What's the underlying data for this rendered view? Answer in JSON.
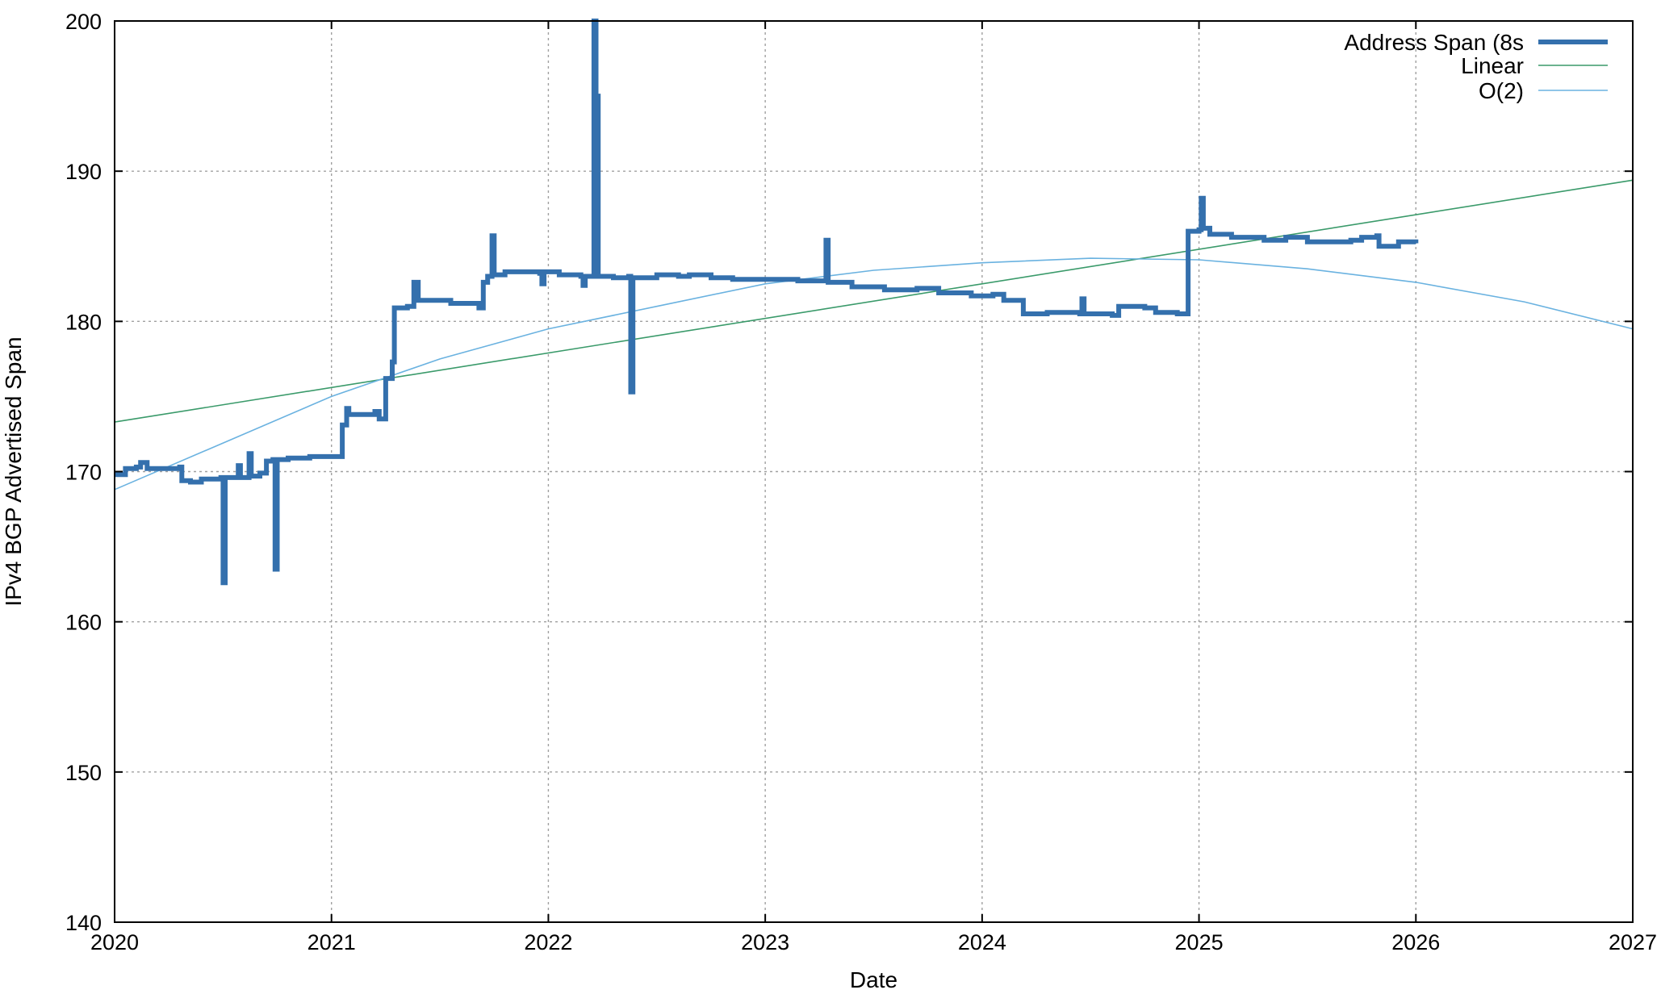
{
  "chart_data": {
    "type": "line",
    "title": "",
    "xlabel": "Date",
    "ylabel": "IPv4 BGP Advertised Span",
    "xlim": [
      2020,
      2027
    ],
    "ylim": [
      140,
      200
    ],
    "x_ticks": [
      "2020",
      "2021",
      "2022",
      "2023",
      "2024",
      "2025",
      "2026",
      "2027"
    ],
    "y_ticks": [
      "140",
      "150",
      "160",
      "170",
      "180",
      "190",
      "200"
    ],
    "grid": true,
    "legend_position": "top-right",
    "colors": {
      "address_span": "#3470ad",
      "linear": "#3a9a6a",
      "o2": "#6ab2e0"
    },
    "series": [
      {
        "name": "Address Span (8s",
        "style": "thick",
        "points": [
          [
            2020.0,
            169.8
          ],
          [
            2020.05,
            170.2
          ],
          [
            2020.1,
            170.3
          ],
          [
            2020.12,
            170.6
          ],
          [
            2020.15,
            170.2
          ],
          [
            2020.3,
            170.3
          ],
          [
            2020.31,
            169.4
          ],
          [
            2020.35,
            169.3
          ],
          [
            2020.4,
            169.5
          ],
          [
            2020.49,
            169.6
          ],
          [
            2020.5,
            162.6
          ],
          [
            2020.51,
            169.6
          ],
          [
            2020.56,
            169.6
          ],
          [
            2020.57,
            170.4
          ],
          [
            2020.58,
            169.6
          ],
          [
            2020.61,
            169.6
          ],
          [
            2020.62,
            171.2
          ],
          [
            2020.63,
            169.7
          ],
          [
            2020.67,
            169.9
          ],
          [
            2020.7,
            170.7
          ],
          [
            2020.73,
            170.8
          ],
          [
            2020.74,
            163.5
          ],
          [
            2020.75,
            170.8
          ],
          [
            2020.8,
            170.9
          ],
          [
            2020.9,
            171.0
          ],
          [
            2021.03,
            171.0
          ],
          [
            2021.05,
            173.1
          ],
          [
            2021.07,
            174.2
          ],
          [
            2021.08,
            173.8
          ],
          [
            2021.2,
            174.0
          ],
          [
            2021.22,
            173.5
          ],
          [
            2021.25,
            176.2
          ],
          [
            2021.28,
            177.3
          ],
          [
            2021.29,
            180.9
          ],
          [
            2021.35,
            181.0
          ],
          [
            2021.38,
            182.6
          ],
          [
            2021.4,
            181.4
          ],
          [
            2021.55,
            181.2
          ],
          [
            2021.65,
            181.2
          ],
          [
            2021.68,
            180.9
          ],
          [
            2021.7,
            182.6
          ],
          [
            2021.72,
            183.0
          ],
          [
            2021.74,
            185.7
          ],
          [
            2021.75,
            183.1
          ],
          [
            2021.8,
            183.3
          ],
          [
            2021.9,
            183.3
          ],
          [
            2021.96,
            183.2
          ],
          [
            2021.97,
            182.5
          ],
          [
            2021.98,
            183.3
          ],
          [
            2022.05,
            183.1
          ],
          [
            2022.15,
            183.0
          ],
          [
            2022.16,
            182.4
          ],
          [
            2022.17,
            183.0
          ],
          [
            2022.2,
            183.0
          ],
          [
            2022.21,
            200.0
          ],
          [
            2022.22,
            195.0
          ],
          [
            2022.23,
            183.0
          ],
          [
            2022.3,
            182.9
          ],
          [
            2022.37,
            183.0
          ],
          [
            2022.38,
            175.3
          ],
          [
            2022.39,
            182.9
          ],
          [
            2022.45,
            182.9
          ],
          [
            2022.5,
            183.1
          ],
          [
            2022.6,
            183.0
          ],
          [
            2022.65,
            183.1
          ],
          [
            2022.75,
            182.9
          ],
          [
            2022.85,
            182.8
          ],
          [
            2023.0,
            182.8
          ],
          [
            2023.15,
            182.7
          ],
          [
            2023.27,
            182.7
          ],
          [
            2023.28,
            185.4
          ],
          [
            2023.29,
            182.6
          ],
          [
            2023.4,
            182.3
          ],
          [
            2023.55,
            182.1
          ],
          [
            2023.7,
            182.2
          ],
          [
            2023.8,
            181.9
          ],
          [
            2023.95,
            181.7
          ],
          [
            2024.05,
            181.8
          ],
          [
            2024.1,
            181.4
          ],
          [
            2024.18,
            181.4
          ],
          [
            2024.19,
            180.5
          ],
          [
            2024.3,
            180.6
          ],
          [
            2024.45,
            180.5
          ],
          [
            2024.46,
            181.5
          ],
          [
            2024.47,
            180.5
          ],
          [
            2024.6,
            180.4
          ],
          [
            2024.63,
            181.0
          ],
          [
            2024.75,
            180.9
          ],
          [
            2024.8,
            180.6
          ],
          [
            2024.9,
            180.5
          ],
          [
            2024.94,
            180.5
          ],
          [
            2024.95,
            186.0
          ],
          [
            2025.0,
            186.1
          ],
          [
            2025.01,
            188.2
          ],
          [
            2025.02,
            186.2
          ],
          [
            2025.05,
            185.8
          ],
          [
            2025.15,
            185.6
          ],
          [
            2025.3,
            185.4
          ],
          [
            2025.4,
            185.6
          ],
          [
            2025.5,
            185.3
          ],
          [
            2025.6,
            185.3
          ],
          [
            2025.7,
            185.4
          ],
          [
            2025.75,
            185.6
          ],
          [
            2025.82,
            185.7
          ],
          [
            2025.83,
            185.0
          ],
          [
            2025.9,
            185.0
          ],
          [
            2025.92,
            185.3
          ],
          [
            2026.0,
            185.2
          ]
        ]
      },
      {
        "name": "Linear",
        "style": "thin",
        "points": [
          [
            2020.0,
            173.3
          ],
          [
            2027.0,
            189.4
          ]
        ]
      },
      {
        "name": "O(2)",
        "style": "thin",
        "points": [
          [
            2020.0,
            168.8
          ],
          [
            2020.5,
            171.9
          ],
          [
            2021.0,
            175.0
          ],
          [
            2021.5,
            177.5
          ],
          [
            2022.0,
            179.5
          ],
          [
            2022.5,
            181.0
          ],
          [
            2023.0,
            182.5
          ],
          [
            2023.5,
            183.4
          ],
          [
            2024.0,
            183.9
          ],
          [
            2024.5,
            184.2
          ],
          [
            2025.0,
            184.1
          ],
          [
            2025.5,
            183.5
          ],
          [
            2026.0,
            182.6
          ],
          [
            2026.5,
            181.3
          ],
          [
            2027.0,
            179.5
          ]
        ]
      }
    ]
  }
}
